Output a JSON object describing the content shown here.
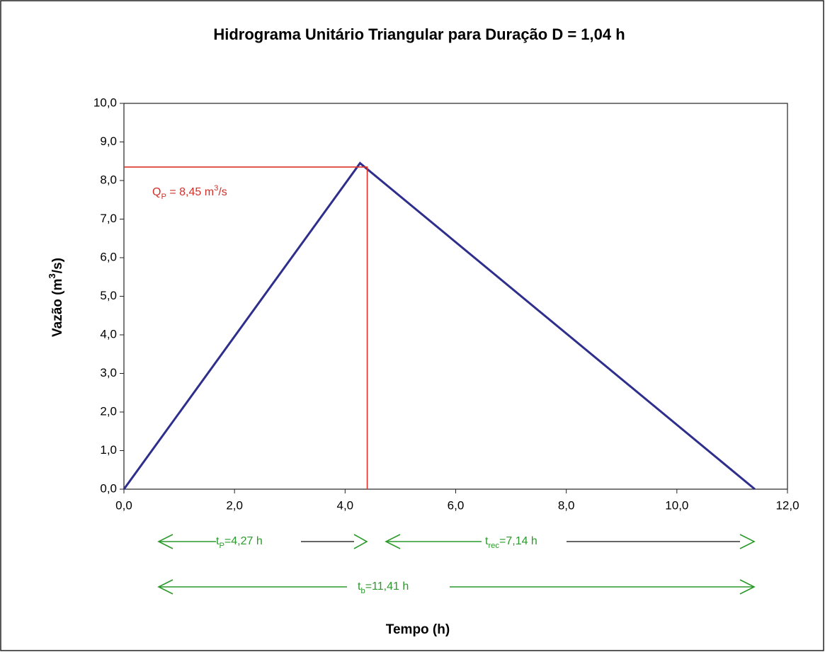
{
  "chart_data": {
    "type": "line",
    "title": "Hidrograma Unitário Triangular para Duração D = 1,04 h",
    "x_label": "Tempo (h)",
    "y_label": [
      {
        "base": "Vazão (m"
      },
      {
        "sup": "3"
      },
      {
        "base": "/s)"
      }
    ],
    "xlim": [
      0,
      12
    ],
    "ylim": [
      0,
      10
    ],
    "xticks": [
      {
        "value": 0,
        "label": "0,0"
      },
      {
        "value": 2,
        "label": "2,0"
      },
      {
        "value": 4,
        "label": "4,0"
      },
      {
        "value": 6,
        "label": "6,0"
      },
      {
        "value": 8,
        "label": "8,0"
      },
      {
        "value": 10,
        "label": "10,0"
      },
      {
        "value": 12,
        "label": "12,0"
      }
    ],
    "yticks": [
      {
        "value": 0,
        "label": "0,0"
      },
      {
        "value": 1,
        "label": "1,0"
      },
      {
        "value": 2,
        "label": "2,0"
      },
      {
        "value": 3,
        "label": "3,0"
      },
      {
        "value": 4,
        "label": "4,0"
      },
      {
        "value": 5,
        "label": "5,0"
      },
      {
        "value": 6,
        "label": "6,0"
      },
      {
        "value": 7,
        "label": "7,0"
      },
      {
        "value": 8,
        "label": "8,0"
      },
      {
        "value": 9,
        "label": "9,0"
      },
      {
        "value": 10,
        "label": "10,0"
      }
    ],
    "series": [
      {
        "color": "#2e2e8c",
        "x": [
          0,
          4.27,
          11.41
        ],
        "values": [
          0,
          8.45,
          0
        ]
      },
      {
        "color": "#e0302a",
        "x": [
          0,
          4.4,
          4.4
        ],
        "values": [
          8.35,
          8.35,
          0
        ]
      }
    ],
    "annotations": [
      {
        "color": "#d0302a",
        "segments": [
          {
            "base": "Q"
          },
          {
            "sub": "P"
          },
          {
            "base": " = 8,45 m"
          },
          {
            "sup": "3"
          },
          {
            "base": "/s"
          }
        ]
      },
      {
        "color": "#2a9a2a",
        "segments": [
          {
            "base": "t"
          },
          {
            "sub": "P"
          },
          {
            "base": "=4,27 h"
          }
        ]
      },
      {
        "color": "#2a9a2a",
        "segments": [
          {
            "base": "t"
          },
          {
            "sub": "rec"
          },
          {
            "base": "=7,14 h"
          }
        ]
      },
      {
        "color": "#2a9a2a",
        "segments": [
          {
            "base": "t"
          },
          {
            "sub": "b"
          },
          {
            "base": "=11,41 h"
          }
        ]
      }
    ]
  }
}
